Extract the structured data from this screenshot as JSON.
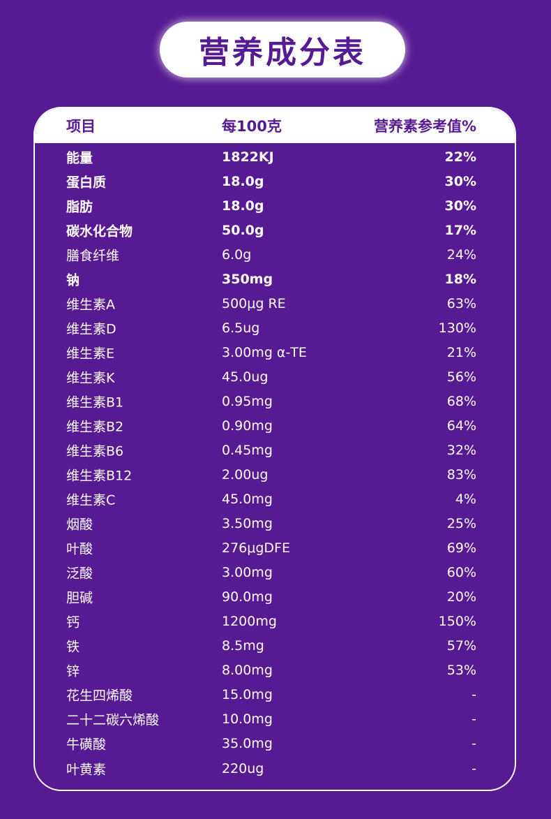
{
  "title": "营养成分表",
  "header": {
    "item": "项目",
    "per100g": "每100克",
    "nrv": "营养素参考值%"
  },
  "rows": [
    {
      "name": "能量",
      "amount": "1822KJ",
      "nrv": "22%",
      "bold": true
    },
    {
      "name": "蛋白质",
      "amount": "18.0g",
      "nrv": "30%",
      "bold": true
    },
    {
      "name": "脂肪",
      "amount": "18.0g",
      "nrv": "30%",
      "bold": true
    },
    {
      "name": "碳水化合物",
      "amount": "50.0g",
      "nrv": "17%",
      "bold": true
    },
    {
      "name": "膳食纤维",
      "amount": "6.0g",
      "nrv": "24%",
      "bold": false
    },
    {
      "name": "钠",
      "amount": "350mg",
      "nrv": "18%",
      "bold": true
    },
    {
      "name": "维生素A",
      "amount": "500μg RE",
      "nrv": "63%",
      "bold": false
    },
    {
      "name": "维生素D",
      "amount": "6.5ug",
      "nrv": "130%",
      "bold": false
    },
    {
      "name": "维生素E",
      "amount": "3.00mg α-TE",
      "nrv": "21%",
      "bold": false
    },
    {
      "name": "维生素K",
      "amount": "45.0ug",
      "nrv": "56%",
      "bold": false
    },
    {
      "name": "维生素B1",
      "amount": "0.95mg",
      "nrv": "68%",
      "bold": false
    },
    {
      "name": "维生素B2",
      "amount": "0.90mg",
      "nrv": "64%",
      "bold": false
    },
    {
      "name": "维生素B6",
      "amount": "0.45mg",
      "nrv": "32%",
      "bold": false
    },
    {
      "name": "维生素B12",
      "amount": "2.00ug",
      "nrv": "83%",
      "bold": false
    },
    {
      "name": "维生素C",
      "amount": "45.0mg",
      "nrv": "4%",
      "bold": false
    },
    {
      "name": "烟酸",
      "amount": "3.50mg",
      "nrv": "25%",
      "bold": false
    },
    {
      "name": "叶酸",
      "amount": "276μgDFE",
      "nrv": "69%",
      "bold": false
    },
    {
      "name": "泛酸",
      "amount": "3.00mg",
      "nrv": "60%",
      "bold": false
    },
    {
      "name": "胆碱",
      "amount": "90.0mg",
      "nrv": "20%",
      "bold": false
    },
    {
      "name": "钙",
      "amount": "1200mg",
      "nrv": "150%",
      "bold": false
    },
    {
      "name": "铁",
      "amount": "8.5mg",
      "nrv": "57%",
      "bold": false
    },
    {
      "name": "锌",
      "amount": "8.00mg",
      "nrv": "53%",
      "bold": false
    },
    {
      "name": "花生四烯酸",
      "amount": "15.0mg",
      "nrv": "-",
      "bold": false
    },
    {
      "name": "二十二碳六烯酸",
      "amount": "10.0mg",
      "nrv": "-",
      "bold": false
    },
    {
      "name": "牛磺酸",
      "amount": "35.0mg",
      "nrv": "-",
      "bold": false
    },
    {
      "name": "叶黄素",
      "amount": "220ug",
      "nrv": "-",
      "bold": false
    }
  ],
  "colors": {
    "background": "#561a92",
    "text": "#ffffff",
    "header_bg": "#ffffff"
  }
}
